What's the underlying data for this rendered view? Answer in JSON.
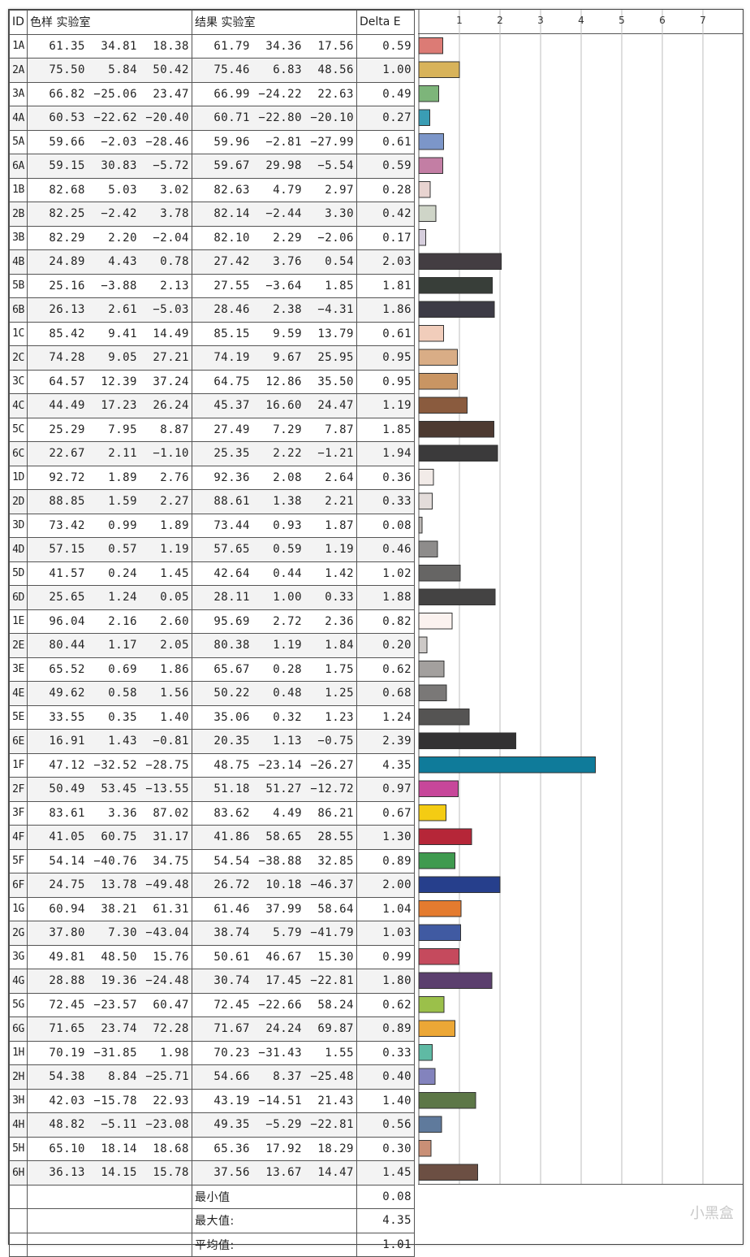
{
  "headers": {
    "id": "ID",
    "sample": "色样 实验室",
    "result": "结果 实验室",
    "delta": "Delta E"
  },
  "rows": [
    {
      "id": "1A",
      "s": [
        "61.35",
        "34.81",
        "18.38"
      ],
      "r": [
        "61.79",
        "34.36",
        "17.56"
      ],
      "de": "0.59",
      "color": "#dc7b75"
    },
    {
      "id": "2A",
      "s": [
        "75.50",
        "5.84",
        "50.42"
      ],
      "r": [
        "75.46",
        "6.83",
        "48.56"
      ],
      "de": "1.00",
      "color": "#d8b35a"
    },
    {
      "id": "3A",
      "s": [
        "66.82",
        "-25.06",
        "23.47"
      ],
      "r": [
        "66.99",
        "-24.22",
        "22.63"
      ],
      "de": "0.49",
      "color": "#7db57a"
    },
    {
      "id": "4A",
      "s": [
        "60.53",
        "-22.62",
        "-20.40"
      ],
      "r": [
        "60.71",
        "-22.80",
        "-20.10"
      ],
      "de": "0.27",
      "color": "#3a9db4"
    },
    {
      "id": "5A",
      "s": [
        "59.66",
        "-2.03",
        "-28.46"
      ],
      "r": [
        "59.96",
        "-2.81",
        "-27.99"
      ],
      "de": "0.61",
      "color": "#7c96c9"
    },
    {
      "id": "6A",
      "s": [
        "59.15",
        "30.83",
        "-5.72"
      ],
      "r": [
        "59.67",
        "29.98",
        "-5.54"
      ],
      "de": "0.59",
      "color": "#c37ea4"
    },
    {
      "id": "1B",
      "s": [
        "82.68",
        "5.03",
        "3.02"
      ],
      "r": [
        "82.63",
        "4.79",
        "2.97"
      ],
      "de": "0.28",
      "color": "#e8d3d0"
    },
    {
      "id": "2B",
      "s": [
        "82.25",
        "-2.42",
        "3.78"
      ],
      "r": [
        "82.14",
        "-2.44",
        "3.30"
      ],
      "de": "0.42",
      "color": "#cfd5c8"
    },
    {
      "id": "3B",
      "s": [
        "82.29",
        "2.20",
        "-2.04"
      ],
      "r": [
        "82.10",
        "2.29",
        "-2.06"
      ],
      "de": "0.17",
      "color": "#d6cedd"
    },
    {
      "id": "4B",
      "s": [
        "24.89",
        "4.43",
        "0.78"
      ],
      "r": [
        "27.42",
        "3.76",
        "0.54"
      ],
      "de": "2.03",
      "color": "#433d42"
    },
    {
      "id": "5B",
      "s": [
        "25.16",
        "-3.88",
        "2.13"
      ],
      "r": [
        "27.55",
        "-3.64",
        "1.85"
      ],
      "de": "1.81",
      "color": "#383e39"
    },
    {
      "id": "6B",
      "s": [
        "26.13",
        "2.61",
        "-5.03"
      ],
      "r": [
        "28.46",
        "2.38",
        "-4.31"
      ],
      "de": "1.86",
      "color": "#3d3b46"
    },
    {
      "id": "1C",
      "s": [
        "85.42",
        "9.41",
        "14.49"
      ],
      "r": [
        "85.15",
        "9.59",
        "13.79"
      ],
      "de": "0.61",
      "color": "#f1cdbb"
    },
    {
      "id": "2C",
      "s": [
        "74.28",
        "9.05",
        "27.21"
      ],
      "r": [
        "74.19",
        "9.67",
        "25.95"
      ],
      "de": "0.95",
      "color": "#d9ad86"
    },
    {
      "id": "3C",
      "s": [
        "64.57",
        "12.39",
        "37.24"
      ],
      "r": [
        "64.75",
        "12.86",
        "35.50"
      ],
      "de": "0.95",
      "color": "#c99563"
    },
    {
      "id": "4C",
      "s": [
        "44.49",
        "17.23",
        "26.24"
      ],
      "r": [
        "45.37",
        "16.60",
        "24.47"
      ],
      "de": "1.19",
      "color": "#8a5b3e"
    },
    {
      "id": "5C",
      "s": [
        "25.29",
        "7.95",
        "8.87"
      ],
      "r": [
        "27.49",
        "7.29",
        "7.87"
      ],
      "de": "1.85",
      "color": "#4d3a31"
    },
    {
      "id": "6C",
      "s": [
        "22.67",
        "2.11",
        "-1.10"
      ],
      "r": [
        "25.35",
        "2.22",
        "-1.21"
      ],
      "de": "1.94",
      "color": "#3b3a3b"
    },
    {
      "id": "1D",
      "s": [
        "92.72",
        "1.89",
        "2.76"
      ],
      "r": [
        "92.36",
        "2.08",
        "2.64"
      ],
      "de": "0.36",
      "color": "#f2ebe8"
    },
    {
      "id": "2D",
      "s": [
        "88.85",
        "1.59",
        "2.27"
      ],
      "r": [
        "88.61",
        "1.38",
        "2.21"
      ],
      "de": "0.33",
      "color": "#e3dcda"
    },
    {
      "id": "3D",
      "s": [
        "73.42",
        "0.99",
        "1.89"
      ],
      "r": [
        "73.44",
        "0.93",
        "1.87"
      ],
      "de": "0.08",
      "color": "#bcb8b6"
    },
    {
      "id": "4D",
      "s": [
        "57.15",
        "0.57",
        "1.19"
      ],
      "r": [
        "57.65",
        "0.59",
        "1.19"
      ],
      "de": "0.46",
      "color": "#8e8c8b"
    },
    {
      "id": "5D",
      "s": [
        "41.57",
        "0.24",
        "1.45"
      ],
      "r": [
        "42.64",
        "0.44",
        "1.42"
      ],
      "de": "1.02",
      "color": "#666564"
    },
    {
      "id": "6D",
      "s": [
        "25.65",
        "1.24",
        "0.05"
      ],
      "r": [
        "28.11",
        "1.00",
        "0.33"
      ],
      "de": "1.88",
      "color": "#444343"
    },
    {
      "id": "1E",
      "s": [
        "96.04",
        "2.16",
        "2.60"
      ],
      "r": [
        "95.69",
        "2.72",
        "2.36"
      ],
      "de": "0.82",
      "color": "#fbf2ef"
    },
    {
      "id": "2E",
      "s": [
        "80.44",
        "1.17",
        "2.05"
      ],
      "r": [
        "80.38",
        "1.19",
        "1.84"
      ],
      "de": "0.20",
      "color": "#cdc9c7"
    },
    {
      "id": "3E",
      "s": [
        "65.52",
        "0.69",
        "1.86"
      ],
      "r": [
        "65.67",
        "0.28",
        "1.75"
      ],
      "de": "0.62",
      "color": "#a3a09e"
    },
    {
      "id": "4E",
      "s": [
        "49.62",
        "0.58",
        "1.56"
      ],
      "r": [
        "50.22",
        "0.48",
        "1.25"
      ],
      "de": "0.68",
      "color": "#7a7877"
    },
    {
      "id": "5E",
      "s": [
        "33.55",
        "0.35",
        "1.40"
      ],
      "r": [
        "35.06",
        "0.32",
        "1.23"
      ],
      "de": "1.24",
      "color": "#555453"
    },
    {
      "id": "6E",
      "s": [
        "16.91",
        "1.43",
        "-0.81"
      ],
      "r": [
        "20.35",
        "1.13",
        "-0.75"
      ],
      "de": "2.39",
      "color": "#333233"
    },
    {
      "id": "1F",
      "s": [
        "47.12",
        "-32.52",
        "-28.75"
      ],
      "r": [
        "48.75",
        "-23.14",
        "-26.27"
      ],
      "de": "4.35",
      "color": "#0f7b9a"
    },
    {
      "id": "2F",
      "s": [
        "50.49",
        "53.45",
        "-13.55"
      ],
      "r": [
        "51.18",
        "51.27",
        "-12.72"
      ],
      "de": "0.97",
      "color": "#c7479a"
    },
    {
      "id": "3F",
      "s": [
        "83.61",
        "3.36",
        "87.02"
      ],
      "r": [
        "83.62",
        "4.49",
        "86.21"
      ],
      "de": "0.67",
      "color": "#f4cc13"
    },
    {
      "id": "4F",
      "s": [
        "41.05",
        "60.75",
        "31.17"
      ],
      "r": [
        "41.86",
        "58.65",
        "28.55"
      ],
      "de": "1.30",
      "color": "#b62638"
    },
    {
      "id": "5F",
      "s": [
        "54.14",
        "-40.76",
        "34.75"
      ],
      "r": [
        "54.54",
        "-38.88",
        "32.85"
      ],
      "de": "0.89",
      "color": "#3f9a4f"
    },
    {
      "id": "6F",
      "s": [
        "24.75",
        "13.78",
        "-49.48"
      ],
      "r": [
        "26.72",
        "10.18",
        "-46.37"
      ],
      "de": "2.00",
      "color": "#263f8c"
    },
    {
      "id": "1G",
      "s": [
        "60.94",
        "38.21",
        "61.31"
      ],
      "r": [
        "61.46",
        "37.99",
        "58.64"
      ],
      "de": "1.04",
      "color": "#e47b2f"
    },
    {
      "id": "2G",
      "s": [
        "37.80",
        "7.30",
        "-43.04"
      ],
      "r": [
        "38.74",
        "5.79",
        "-41.79"
      ],
      "de": "1.03",
      "color": "#405aa2"
    },
    {
      "id": "3G",
      "s": [
        "49.81",
        "48.50",
        "15.76"
      ],
      "r": [
        "50.61",
        "46.67",
        "15.30"
      ],
      "de": "0.99",
      "color": "#c54a5d"
    },
    {
      "id": "4G",
      "s": [
        "28.88",
        "19.36",
        "-24.48"
      ],
      "r": [
        "30.74",
        "17.45",
        "-22.81"
      ],
      "de": "1.80",
      "color": "#5b3f6e"
    },
    {
      "id": "5G",
      "s": [
        "72.45",
        "-23.57",
        "60.47"
      ],
      "r": [
        "72.45",
        "-22.66",
        "58.24"
      ],
      "de": "0.62",
      "color": "#9bc04a"
    },
    {
      "id": "6G",
      "s": [
        "71.65",
        "23.74",
        "72.28"
      ],
      "r": [
        "71.67",
        "24.24",
        "69.87"
      ],
      "de": "0.89",
      "color": "#eca736"
    },
    {
      "id": "1H",
      "s": [
        "70.19",
        "-31.85",
        "1.98"
      ],
      "r": [
        "70.23",
        "-31.43",
        "1.55"
      ],
      "de": "0.33",
      "color": "#5fbaa4"
    },
    {
      "id": "2H",
      "s": [
        "54.38",
        "8.84",
        "-25.71"
      ],
      "r": [
        "54.66",
        "8.37",
        "-25.48"
      ],
      "de": "0.40",
      "color": "#8383bd"
    },
    {
      "id": "3H",
      "s": [
        "42.03",
        "-15.78",
        "22.93"
      ],
      "r": [
        "43.19",
        "-14.51",
        "21.43"
      ],
      "de": "1.40",
      "color": "#5d7747"
    },
    {
      "id": "4H",
      "s": [
        "48.82",
        "-5.11",
        "-23.08"
      ],
      "r": [
        "49.35",
        "-5.29",
        "-22.81"
      ],
      "de": "0.56",
      "color": "#5f7a9c"
    },
    {
      "id": "5H",
      "s": [
        "65.10",
        "18.14",
        "18.68"
      ],
      "r": [
        "65.36",
        "17.92",
        "18.29"
      ],
      "de": "0.30",
      "color": "#c98f76"
    },
    {
      "id": "6H",
      "s": [
        "36.13",
        "14.15",
        "15.78"
      ],
      "r": [
        "37.56",
        "13.67",
        "14.47"
      ],
      "de": "1.45",
      "color": "#6c4f43"
    }
  ],
  "summary": [
    {
      "label": "最小值",
      "value": "0.08"
    },
    {
      "label": "最大值:",
      "value": "4.35"
    },
    {
      "label": "平均值:",
      "value": "1.01"
    }
  ],
  "chart_data": {
    "type": "bar",
    "orientation": "horizontal",
    "xlim": [
      0,
      7.8
    ],
    "ticks": [
      "1",
      "2",
      "3",
      "4",
      "5",
      "6",
      "7"
    ],
    "categories": [
      "1A",
      "2A",
      "3A",
      "4A",
      "5A",
      "6A",
      "1B",
      "2B",
      "3B",
      "4B",
      "5B",
      "6B",
      "1C",
      "2C",
      "3C",
      "4C",
      "5C",
      "6C",
      "1D",
      "2D",
      "3D",
      "4D",
      "5D",
      "6D",
      "1E",
      "2E",
      "3E",
      "4E",
      "5E",
      "6E",
      "1F",
      "2F",
      "3F",
      "4F",
      "5F",
      "6F",
      "1G",
      "2G",
      "3G",
      "4G",
      "5G",
      "6G",
      "1H",
      "2H",
      "3H",
      "4H",
      "5H",
      "6H"
    ],
    "values": [
      0.59,
      1.0,
      0.49,
      0.27,
      0.61,
      0.59,
      0.28,
      0.42,
      0.17,
      2.03,
      1.81,
      1.86,
      0.61,
      0.95,
      0.95,
      1.19,
      1.85,
      1.94,
      0.36,
      0.33,
      0.08,
      0.46,
      1.02,
      1.88,
      0.82,
      0.2,
      0.62,
      0.68,
      1.24,
      2.39,
      4.35,
      0.97,
      0.67,
      1.3,
      0.89,
      2.0,
      1.04,
      1.03,
      0.99,
      1.8,
      0.62,
      0.89,
      0.33,
      0.4,
      1.4,
      0.56,
      0.3,
      1.45
    ],
    "grid": true
  },
  "watermark": "小黑盒"
}
